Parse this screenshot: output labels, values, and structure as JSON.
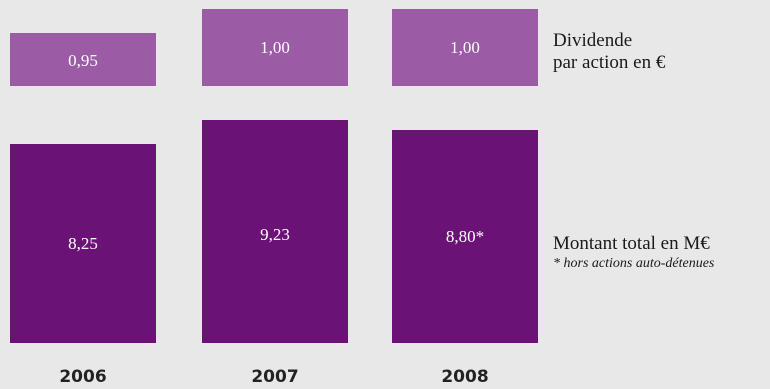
{
  "chart_data": [
    {
      "type": "bar",
      "categories": [
        "2006",
        "2007",
        "2008"
      ],
      "values": [
        0.95,
        1.0,
        1.0
      ],
      "value_labels": [
        "0,95",
        "1,00",
        "1,00"
      ],
      "legend_label": [
        "Dividende",
        "par action en €"
      ],
      "color": "#9b5ba5"
    },
    {
      "type": "bar",
      "categories": [
        "2006",
        "2007",
        "2008"
      ],
      "values": [
        8.25,
        9.23,
        8.8
      ],
      "value_labels": [
        "8,25",
        "9,23",
        "8,80*"
      ],
      "legend_label": "Montant total en M€",
      "legend_note": "* hors actions auto-détenues",
      "color": "#6b1277"
    }
  ]
}
